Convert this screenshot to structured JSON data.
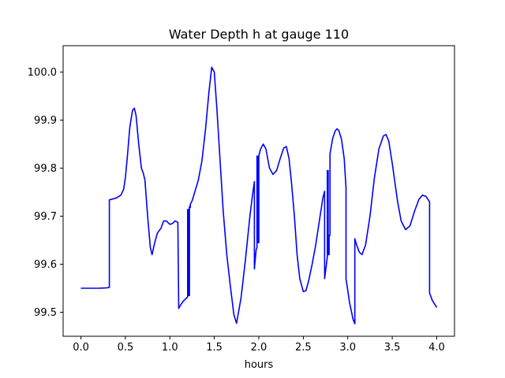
{
  "chart_data": {
    "type": "line",
    "title": "Water Depth h at gauge 110",
    "xlabel": "hours",
    "ylabel": "",
    "xlim": [
      -0.2,
      4.2
    ],
    "ylim": [
      99.45,
      100.055
    ],
    "xticks": [
      0.0,
      0.5,
      1.0,
      1.5,
      2.0,
      2.5,
      3.0,
      3.5,
      4.0
    ],
    "xtick_labels": [
      "0.0",
      "0.5",
      "1.0",
      "1.5",
      "2.0",
      "2.5",
      "3.0",
      "3.5",
      "4.0"
    ],
    "yticks": [
      99.5,
      99.6,
      99.7,
      99.8,
      99.9,
      100.0
    ],
    "ytick_labels": [
      "99.5",
      "99.6",
      "99.7",
      "99.8",
      "99.9",
      "100.0"
    ],
    "grid": false,
    "legend": "none",
    "series": [
      {
        "color": "#0000ff",
        "x": [
          0.0,
          0.1,
          0.2,
          0.3,
          0.32,
          0.32,
          0.36,
          0.4,
          0.45,
          0.48,
          0.5,
          0.52,
          0.55,
          0.58,
          0.6,
          0.62,
          0.65,
          0.68,
          0.7,
          0.72,
          0.75,
          0.78,
          0.8,
          0.83,
          0.86,
          0.9,
          0.93,
          0.96,
          1.0,
          1.03,
          1.06,
          1.09,
          1.1,
          1.12,
          1.15,
          1.19,
          1.2,
          1.2,
          1.21,
          1.21,
          1.22,
          1.22,
          1.23,
          1.23,
          1.25,
          1.28,
          1.32,
          1.36,
          1.4,
          1.44,
          1.47,
          1.5,
          1.53,
          1.57,
          1.6,
          1.64,
          1.68,
          1.72,
          1.75,
          1.8,
          1.85,
          1.9,
          1.93,
          1.95,
          1.95,
          1.97,
          1.98,
          1.98,
          1.99,
          1.99,
          2.0,
          2.0,
          2.02,
          2.05,
          2.08,
          2.12,
          2.16,
          2.2,
          2.24,
          2.28,
          2.31,
          2.34,
          2.37,
          2.4,
          2.43,
          2.46,
          2.5,
          2.53,
          2.56,
          2.6,
          2.64,
          2.68,
          2.72,
          2.74,
          2.74,
          2.76,
          2.77,
          2.77,
          2.78,
          2.78,
          2.79,
          2.79,
          2.8,
          2.8,
          2.81,
          2.83,
          2.86,
          2.88,
          2.9,
          2.93,
          2.96,
          2.98,
          2.98,
          3.02,
          3.06,
          3.08,
          3.08,
          3.1,
          3.13,
          3.16,
          3.2,
          3.25,
          3.3,
          3.35,
          3.4,
          3.43,
          3.46,
          3.5,
          3.53,
          3.56,
          3.6,
          3.65,
          3.7,
          3.75,
          3.8,
          3.84,
          3.88,
          3.92,
          3.92,
          3.95,
          4.0
        ],
        "y": [
          99.55,
          99.55,
          99.55,
          99.551,
          99.552,
          99.734,
          99.736,
          99.738,
          99.744,
          99.756,
          99.78,
          99.82,
          99.885,
          99.92,
          99.925,
          99.91,
          99.85,
          99.8,
          99.79,
          99.775,
          99.7,
          99.635,
          99.62,
          99.645,
          99.665,
          99.675,
          99.69,
          99.69,
          99.683,
          99.685,
          99.69,
          99.687,
          99.508,
          99.515,
          99.523,
          99.53,
          99.532,
          99.714,
          99.714,
          99.535,
          99.535,
          99.72,
          99.718,
          99.725,
          99.732,
          99.75,
          99.775,
          99.815,
          99.88,
          99.96,
          100.01,
          100.0,
          99.92,
          99.8,
          99.71,
          99.62,
          99.555,
          99.495,
          99.477,
          99.53,
          99.61,
          99.7,
          99.745,
          99.772,
          99.59,
          99.63,
          99.635,
          99.825,
          99.825,
          99.645,
          99.645,
          99.826,
          99.84,
          99.85,
          99.84,
          99.8,
          99.787,
          99.795,
          99.82,
          99.842,
          99.845,
          99.82,
          99.765,
          99.7,
          99.62,
          99.57,
          99.543,
          99.545,
          99.565,
          99.6,
          99.64,
          99.69,
          99.738,
          99.752,
          99.57,
          99.6,
          99.615,
          99.795,
          99.795,
          99.62,
          99.62,
          99.66,
          99.66,
          99.83,
          99.84,
          99.862,
          99.878,
          99.882,
          99.878,
          99.86,
          99.82,
          99.76,
          99.57,
          99.52,
          99.485,
          99.476,
          99.653,
          99.64,
          99.625,
          99.62,
          99.64,
          99.7,
          99.78,
          99.84,
          99.867,
          99.87,
          99.857,
          99.81,
          99.77,
          99.73,
          99.69,
          99.672,
          99.68,
          99.71,
          99.735,
          99.744,
          99.741,
          99.73,
          99.54,
          99.525,
          99.51
        ]
      }
    ]
  }
}
